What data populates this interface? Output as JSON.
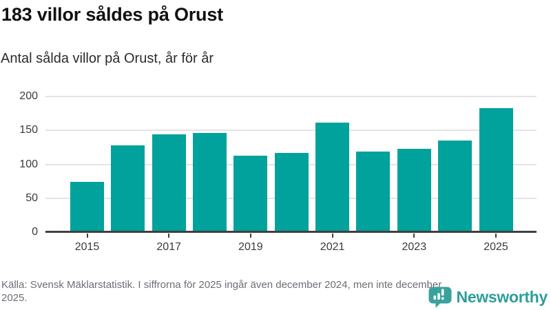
{
  "header": {
    "title": "183 villor såldes på Orust",
    "subtitle": "Antal sålda villor på Orust, år för år"
  },
  "chart_data": {
    "type": "bar",
    "title": "183 villor såldes på Orust",
    "subtitle": "Antal sålda villor på Orust, år för år",
    "categories": [
      "2015",
      "2016",
      "2017",
      "2018",
      "2019",
      "2020",
      "2021",
      "2022",
      "2023",
      "2024",
      "2025"
    ],
    "values": [
      74,
      128,
      144,
      146,
      113,
      117,
      161,
      119,
      123,
      135,
      183
    ],
    "series_name": "Antal sålda villor",
    "xlabel": "",
    "ylabel": "",
    "ylim": [
      0,
      200
    ],
    "yticks": [
      0,
      50,
      100,
      150,
      200
    ],
    "x_tick_labels": [
      "2015",
      "2017",
      "2019",
      "2021",
      "2023",
      "2025"
    ],
    "grid": true,
    "legend": false,
    "bar_color": "#00a29b"
  },
  "footer": {
    "source": "Källa: Svensk Mäklarstatistik. I siffrorna för 2025 ingår även december 2024, men inte december 2025.",
    "logo_text": "Newsworthy",
    "logo_icon": "speech-bubble-bar-chart-icon"
  },
  "colors": {
    "bar": "#00a29b",
    "axis": "#3f3f3f",
    "gridline": "#e4e4e4",
    "title": "#111111",
    "subtitle": "#2b2b2b",
    "axis_label": "#3a3a3a",
    "source_text": "#6d6d76",
    "logo_bubble": "#3aa29c",
    "logo_text": "#2d9e99"
  }
}
